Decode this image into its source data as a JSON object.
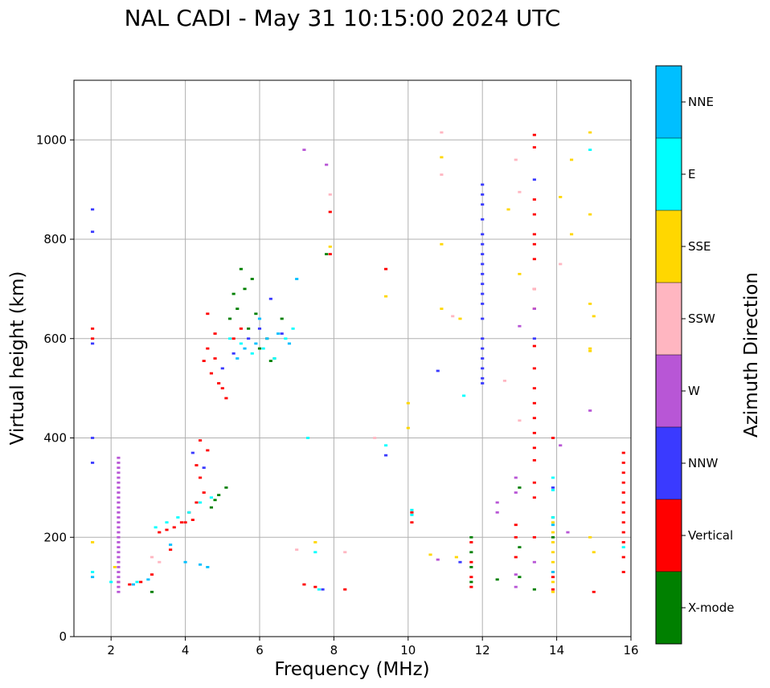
{
  "chart_data": {
    "type": "scatter",
    "title": "NAL CADI - May 31 10:15:00 2024 UTC",
    "xlabel": "Frequency (MHz)",
    "ylabel": "Virtual height (km)",
    "xlim": [
      1,
      16
    ],
    "ylim": [
      0,
      1120
    ],
    "xticks": [
      2,
      4,
      6,
      8,
      10,
      12,
      14,
      16
    ],
    "yticks": [
      0,
      200,
      400,
      600,
      800,
      1000
    ],
    "grid": true,
    "colorbar": {
      "label": "Azimuth Direction",
      "categories": [
        {
          "name": "X-mode",
          "color": "#008000"
        },
        {
          "name": "Vertical",
          "color": "#ff0000"
        },
        {
          "name": "NNW",
          "color": "#3a3aff"
        },
        {
          "name": "W",
          "color": "#b856d6"
        },
        {
          "name": "SSW",
          "color": "#ffb6c1"
        },
        {
          "name": "SSE",
          "color": "#ffd700"
        },
        {
          "name": "E",
          "color": "#00ffff"
        },
        {
          "name": "NNE",
          "color": "#00bfff"
        }
      ]
    },
    "point_size": {
      "dx": 0.1,
      "dy": 5
    },
    "series": [
      {
        "name": "X-mode",
        "x": [
          3.1,
          4.7,
          4.8,
          5.1,
          5.3,
          5.4,
          5.5,
          5.6,
          5.7,
          5.9,
          6.0,
          6.2,
          6.4,
          6.6,
          11.7,
          11.7,
          11.7,
          11.7,
          12.4,
          13.0,
          13.0,
          13.0,
          13.9,
          13.9,
          13.4,
          4.9,
          5.2,
          5.8,
          6.3,
          7.8
        ],
        "y": [
          90,
          260,
          275,
          300,
          690,
          660,
          740,
          700,
          620,
          650,
          580,
          600,
          560,
          640,
          200,
          170,
          140,
          110,
          115,
          300,
          180,
          120,
          240,
          200,
          95,
          285,
          640,
          720,
          555,
          770
        ]
      },
      {
        "name": "Vertical",
        "x": [
          1.5,
          1.5,
          2.2,
          2.5,
          2.8,
          3.1,
          3.3,
          3.5,
          3.7,
          3.9,
          4.1,
          4.3,
          4.5,
          4.4,
          4.3,
          4.0,
          4.2,
          4.6,
          4.8,
          5.0,
          4.5,
          4.7,
          4.9,
          5.1,
          5.3,
          5.5,
          4.6,
          4.8,
          7.2,
          7.5,
          8.3,
          7.9,
          7.9,
          10.1,
          10.1,
          9.4,
          11.7,
          11.7,
          11.7,
          11.7,
          12.9,
          12.9,
          12.9,
          13.4,
          13.4,
          13.4,
          13.4,
          13.4,
          13.4,
          13.4,
          13.4,
          13.4,
          13.4,
          13.4,
          13.4,
          13.4,
          13.4,
          13.4,
          13.4,
          13.4,
          13.4,
          13.4,
          13.4,
          13.9,
          13.9,
          13.9,
          15.0,
          15.8,
          15.8,
          15.8,
          15.8,
          15.8,
          15.8,
          15.8,
          15.8,
          15.8,
          15.8,
          15.8,
          15.8,
          4.4,
          4.6,
          3.6
        ],
        "y": [
          620,
          600,
          110,
          105,
          110,
          125,
          210,
          215,
          220,
          230,
          250,
          270,
          290,
          320,
          345,
          230,
          235,
          580,
          560,
          500,
          555,
          530,
          510,
          480,
          600,
          620,
          650,
          610,
          105,
          100,
          95,
          855,
          770,
          250,
          230,
          740,
          190,
          150,
          120,
          100,
          225,
          200,
          160,
          1010,
          985,
          880,
          850,
          810,
          790,
          760,
          700,
          660,
          585,
          540,
          500,
          470,
          440,
          410,
          380,
          355,
          310,
          280,
          200,
          400,
          120,
          95,
          90,
          370,
          350,
          330,
          310,
          290,
          270,
          250,
          230,
          210,
          190,
          160,
          130,
          395,
          375,
          175
        ]
      },
      {
        "name": "NNW",
        "x": [
          1.5,
          1.5,
          1.5,
          1.5,
          1.5,
          4.2,
          4.5,
          5.0,
          5.3,
          5.7,
          6.0,
          6.3,
          6.6,
          12.0,
          12.0,
          12.0,
          12.0,
          12.0,
          12.0,
          12.0,
          12.0,
          12.0,
          12.0,
          12.0,
          12.0,
          12.0,
          12.0,
          12.0,
          12.0,
          12.0,
          12.0,
          12.0,
          10.8,
          13.4,
          13.4,
          13.9,
          11.4,
          7.7,
          9.4
        ],
        "y": [
          860,
          815,
          590,
          400,
          350,
          370,
          340,
          540,
          570,
          600,
          620,
          680,
          610,
          910,
          890,
          870,
          840,
          810,
          790,
          770,
          750,
          730,
          710,
          690,
          670,
          640,
          600,
          580,
          560,
          540,
          520,
          510,
          535,
          920,
          600,
          300,
          150,
          95,
          365
        ]
      },
      {
        "name": "W",
        "x": [
          2.2,
          2.2,
          2.2,
          2.2,
          2.2,
          2.2,
          2.2,
          2.2,
          2.2,
          2.2,
          2.2,
          2.2,
          2.2,
          2.2,
          2.2,
          2.2,
          2.2,
          2.2,
          2.2,
          2.2,
          2.2,
          2.2,
          2.2,
          2.2,
          2.2,
          2.2,
          2.2,
          2.2,
          7.2,
          7.8,
          12.4,
          12.4,
          12.9,
          12.9,
          12.9,
          12.9,
          13.4,
          13.4,
          14.1,
          14.3,
          14.9,
          13.0,
          10.8
        ],
        "y": [
          360,
          350,
          340,
          330,
          320,
          310,
          300,
          290,
          280,
          270,
          260,
          250,
          240,
          230,
          220,
          210,
          200,
          190,
          180,
          170,
          160,
          150,
          140,
          130,
          120,
          110,
          100,
          90,
          980,
          950,
          270,
          250,
          320,
          290,
          125,
          100,
          660,
          150,
          385,
          210,
          455,
          625,
          155
        ]
      },
      {
        "name": "SSW",
        "x": [
          3.1,
          3.3,
          10.9,
          10.9,
          11.2,
          12.6,
          12.9,
          13.4,
          13.0,
          13.0,
          14.1,
          7.9,
          8.3,
          7.0,
          9.1
        ],
        "y": [
          160,
          150,
          1015,
          930,
          645,
          515,
          960,
          700,
          895,
          435,
          750,
          890,
          170,
          175,
          400
        ]
      },
      {
        "name": "SSE",
        "x": [
          1.5,
          2.1,
          7.5,
          7.9,
          9.4,
          10.0,
          10.0,
          10.6,
          10.9,
          10.9,
          10.9,
          11.4,
          12.7,
          13.0,
          13.9,
          13.9,
          13.9,
          13.9,
          13.9,
          13.9,
          13.9,
          13.9,
          14.1,
          14.4,
          14.4,
          14.9,
          14.9,
          14.9,
          14.9,
          14.9,
          14.9,
          15.0,
          15.0,
          11.3
        ],
        "y": [
          190,
          140,
          190,
          785,
          685,
          470,
          420,
          165,
          965,
          790,
          660,
          640,
          860,
          730,
          230,
          210,
          190,
          170,
          150,
          130,
          110,
          90,
          885,
          960,
          810,
          1015,
          850,
          670,
          580,
          575,
          200,
          170,
          645,
          160
        ]
      },
      {
        "name": "E",
        "x": [
          1.5,
          2.0,
          2.7,
          3.2,
          3.5,
          3.8,
          4.1,
          4.4,
          4.7,
          5.2,
          5.5,
          5.8,
          6.1,
          6.4,
          6.7,
          6.9,
          7.3,
          7.5,
          7.6,
          9.4,
          10.1,
          13.9,
          13.9,
          13.9,
          14.9,
          11.5,
          10.1,
          15.8
        ],
        "y": [
          130,
          110,
          110,
          220,
          230,
          240,
          250,
          270,
          280,
          600,
          590,
          570,
          580,
          560,
          600,
          620,
          400,
          170,
          95,
          385,
          255,
          320,
          295,
          240,
          980,
          485,
          245,
          180
        ]
      },
      {
        "name": "NNE",
        "x": [
          1.5,
          2.6,
          3.0,
          3.6,
          4.0,
          4.4,
          4.6,
          5.4,
          5.6,
          5.9,
          6.2,
          6.5,
          6.8,
          6.0,
          7.0,
          13.9,
          13.9
        ],
        "y": [
          120,
          105,
          115,
          185,
          150,
          145,
          140,
          560,
          580,
          590,
          600,
          610,
          590,
          640,
          720,
          225,
          130
        ]
      }
    ]
  }
}
